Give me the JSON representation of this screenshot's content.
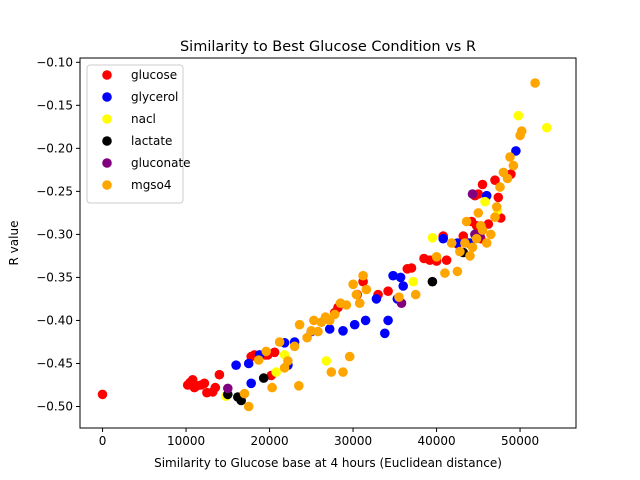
{
  "chart_data": {
    "type": "scatter",
    "title": "Similarity to Best Glucose Condition vs R",
    "xlabel": "Similarity to Glucose base at 4 hours (Euclidean distance)",
    "ylabel": "R value",
    "xlim": [
      -2700,
      56700
    ],
    "ylim": [
      -0.525,
      -0.095
    ],
    "xticks": [
      0,
      10000,
      20000,
      30000,
      40000,
      50000
    ],
    "xtick_labels": [
      "0",
      "10000",
      "20000",
      "30000",
      "40000",
      "50000"
    ],
    "yticks": [
      -0.5,
      -0.45,
      -0.4,
      -0.35,
      -0.3,
      -0.25,
      -0.2,
      -0.15,
      -0.1
    ],
    "ytick_labels": [
      "−0.50",
      "−0.45",
      "−0.40",
      "−0.35",
      "−0.30",
      "−0.25",
      "−0.20",
      "−0.15",
      "−0.10"
    ],
    "grid": false,
    "legend_position": "top-left",
    "series": [
      {
        "name": "glucose",
        "color": "#ff0000",
        "points": [
          [
            0,
            -0.486
          ],
          [
            10200,
            -0.475
          ],
          [
            10500,
            -0.472
          ],
          [
            10800,
            -0.469
          ],
          [
            11000,
            -0.478
          ],
          [
            11300,
            -0.476
          ],
          [
            11800,
            -0.475
          ],
          [
            12200,
            -0.473
          ],
          [
            12500,
            -0.484
          ],
          [
            13200,
            -0.483
          ],
          [
            13500,
            -0.478
          ],
          [
            14000,
            -0.463
          ],
          [
            17800,
            -0.442
          ],
          [
            18200,
            -0.44
          ],
          [
            19500,
            -0.44
          ],
          [
            19800,
            -0.44
          ],
          [
            20200,
            -0.464
          ],
          [
            20600,
            -0.437
          ],
          [
            27800,
            -0.391
          ],
          [
            28200,
            -0.385
          ],
          [
            30500,
            -0.37
          ],
          [
            31200,
            -0.355
          ],
          [
            33000,
            -0.37
          ],
          [
            34200,
            -0.366
          ],
          [
            36500,
            -0.34
          ],
          [
            37000,
            -0.339
          ],
          [
            38500,
            -0.328
          ],
          [
            39200,
            -0.33
          ],
          [
            40000,
            -0.331
          ],
          [
            40800,
            -0.302
          ],
          [
            41200,
            -0.33
          ],
          [
            42500,
            -0.311
          ],
          [
            43200,
            -0.302
          ],
          [
            43800,
            -0.31
          ],
          [
            44200,
            -0.285
          ],
          [
            44800,
            -0.29
          ],
          [
            45000,
            -0.253
          ],
          [
            45500,
            -0.242
          ],
          [
            46200,
            -0.288
          ],
          [
            47000,
            -0.237
          ],
          [
            47400,
            -0.257
          ],
          [
            47700,
            -0.281
          ],
          [
            48500,
            -0.232
          ],
          [
            48900,
            -0.23
          ],
          [
            45300,
            -0.305
          ],
          [
            44600,
            -0.255
          ]
        ]
      },
      {
        "name": "glycerol",
        "color": "#0000ff",
        "points": [
          [
            16000,
            -0.452
          ],
          [
            17500,
            -0.45
          ],
          [
            17800,
            -0.473
          ],
          [
            18800,
            -0.44
          ],
          [
            21800,
            -0.426
          ],
          [
            22200,
            -0.452
          ],
          [
            23000,
            -0.425
          ],
          [
            25000,
            -0.413
          ],
          [
            27200,
            -0.41
          ],
          [
            28800,
            -0.412
          ],
          [
            30200,
            -0.405
          ],
          [
            31500,
            -0.4
          ],
          [
            32800,
            -0.375
          ],
          [
            33800,
            -0.415
          ],
          [
            34200,
            -0.4
          ],
          [
            34800,
            -0.348
          ],
          [
            35300,
            -0.375
          ],
          [
            36000,
            -0.36
          ],
          [
            40800,
            -0.305
          ],
          [
            42500,
            -0.31
          ],
          [
            44000,
            -0.31
          ],
          [
            46000,
            -0.255
          ],
          [
            49500,
            -0.203
          ],
          [
            35700,
            -0.35
          ]
        ]
      },
      {
        "name": "nacl",
        "color": "#ffff00",
        "points": [
          [
            14800,
            -0.488
          ],
          [
            20800,
            -0.46
          ],
          [
            21800,
            -0.44
          ],
          [
            26800,
            -0.447
          ],
          [
            37200,
            -0.355
          ],
          [
            39500,
            -0.304
          ],
          [
            45800,
            -0.262
          ],
          [
            47300,
            -0.272
          ],
          [
            49800,
            -0.162
          ],
          [
            53200,
            -0.176
          ],
          [
            41800,
            -0.31
          ]
        ]
      },
      {
        "name": "lactate",
        "color": "#000000",
        "points": [
          [
            15000,
            -0.486
          ],
          [
            16200,
            -0.489
          ],
          [
            16600,
            -0.493
          ],
          [
            19300,
            -0.467
          ],
          [
            39500,
            -0.355
          ],
          [
            43200,
            -0.321
          ],
          [
            44600,
            -0.3
          ]
        ]
      },
      {
        "name": "gluconate",
        "color": "#800080",
        "points": [
          [
            15000,
            -0.479
          ],
          [
            35800,
            -0.38
          ],
          [
            44300,
            -0.253
          ],
          [
            44600,
            -0.3
          ],
          [
            45200,
            -0.302
          ]
        ]
      },
      {
        "name": "mgso4",
        "color": "#ffa500",
        "points": [
          [
            17000,
            -0.485
          ],
          [
            17500,
            -0.5
          ],
          [
            18700,
            -0.446
          ],
          [
            19600,
            -0.436
          ],
          [
            20300,
            -0.478
          ],
          [
            21200,
            -0.425
          ],
          [
            21800,
            -0.455
          ],
          [
            22200,
            -0.447
          ],
          [
            23000,
            -0.43
          ],
          [
            23500,
            -0.476
          ],
          [
            23600,
            -0.405
          ],
          [
            24500,
            -0.42
          ],
          [
            25000,
            -0.412
          ],
          [
            25300,
            -0.4
          ],
          [
            25800,
            -0.413
          ],
          [
            26200,
            -0.402
          ],
          [
            26700,
            -0.396
          ],
          [
            27200,
            -0.4
          ],
          [
            27400,
            -0.46
          ],
          [
            27800,
            -0.393
          ],
          [
            28500,
            -0.38
          ],
          [
            28800,
            -0.46
          ],
          [
            29200,
            -0.382
          ],
          [
            29600,
            -0.442
          ],
          [
            30000,
            -0.358
          ],
          [
            30400,
            -0.37
          ],
          [
            30800,
            -0.38
          ],
          [
            31200,
            -0.348
          ],
          [
            31600,
            -0.364
          ],
          [
            35500,
            -0.373
          ],
          [
            37500,
            -0.37
          ],
          [
            40000,
            -0.326
          ],
          [
            41000,
            -0.345
          ],
          [
            41800,
            -0.31
          ],
          [
            42500,
            -0.343
          ],
          [
            42800,
            -0.32
          ],
          [
            43400,
            -0.31
          ],
          [
            43600,
            -0.285
          ],
          [
            44000,
            -0.325
          ],
          [
            44300,
            -0.315
          ],
          [
            44800,
            -0.305
          ],
          [
            45000,
            -0.275
          ],
          [
            45500,
            -0.295
          ],
          [
            46000,
            -0.31
          ],
          [
            46500,
            -0.3
          ],
          [
            47000,
            -0.28
          ],
          [
            47200,
            -0.268
          ],
          [
            48000,
            -0.228
          ],
          [
            48500,
            -0.235
          ],
          [
            48800,
            -0.21
          ],
          [
            49200,
            -0.22
          ],
          [
            50000,
            -0.185
          ],
          [
            50200,
            -0.18
          ],
          [
            51800,
            -0.124
          ],
          [
            47600,
            -0.245
          ],
          [
            45300,
            -0.29
          ]
        ]
      }
    ]
  }
}
